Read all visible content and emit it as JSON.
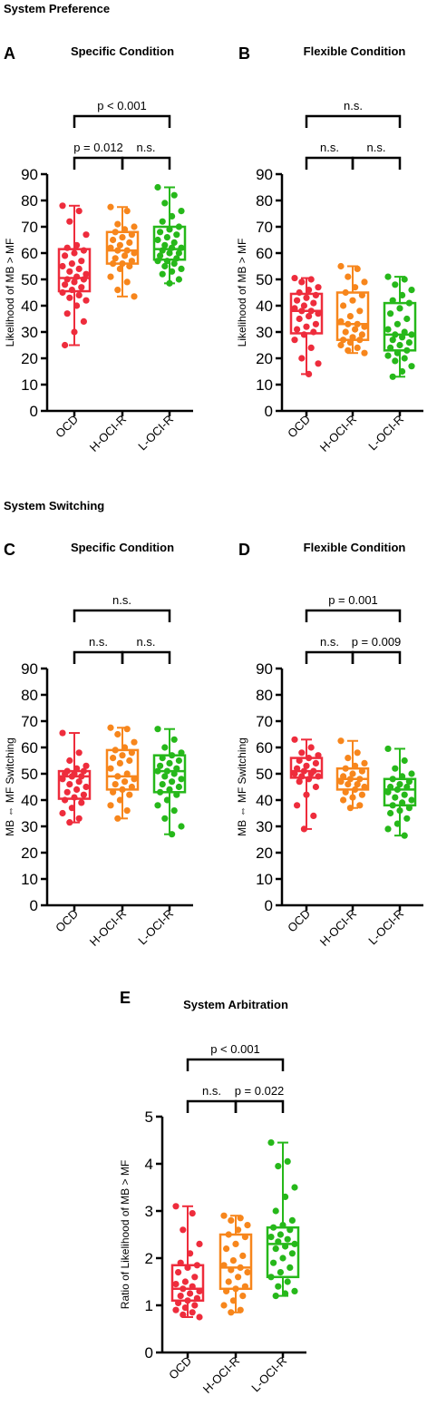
{
  "section_headers": [
    "System Preference",
    "System Switching"
  ],
  "colors": {
    "OCD": "#ee2c3c",
    "H-OCI-R": "#f7861c",
    "L-OCI-R": "#26b81a"
  },
  "chart_data": [
    {
      "panel": "A",
      "title": "Specific Condition",
      "type": "box",
      "ylabel": "Likelihood of MB > MF",
      "ylim": [
        0,
        90
      ],
      "yticks": [
        "0",
        "10",
        "20",
        "30",
        "40",
        "50",
        "60",
        "70",
        "80",
        "90"
      ],
      "categories": [
        "OCD",
        "H-OCI-R",
        "L-OCI-R"
      ],
      "comparisons": [
        {
          "groups": [
            "OCD",
            "H-OCI-R"
          ],
          "label": "p = 0.012"
        },
        {
          "groups": [
            "H-OCI-R",
            "L-OCI-R"
          ],
          "label": "n.s."
        },
        {
          "groups": [
            "OCD",
            "L-OCI-R"
          ],
          "label": "p < 0.001"
        }
      ],
      "series": [
        {
          "group": "OCD",
          "min": 25,
          "q1": 45.5,
          "median": 50.5,
          "q3": 61.5,
          "max": 78,
          "points": [
            78,
            76,
            72,
            67,
            63,
            62,
            61,
            60,
            59,
            57,
            56,
            55,
            54,
            53,
            52,
            51,
            50,
            50,
            49,
            48,
            47,
            46,
            45,
            44,
            43,
            42,
            40,
            37,
            34,
            30,
            25
          ]
        },
        {
          "group": "H-OCI-R",
          "min": 43.5,
          "q1": 56,
          "median": 61,
          "q3": 68,
          "max": 77.5,
          "points": [
            77.5,
            76,
            71,
            70,
            69,
            68,
            67,
            66,
            65,
            64,
            63,
            62,
            61,
            61,
            60,
            59,
            58,
            57,
            56,
            56,
            55,
            54,
            51,
            49,
            46,
            43.5
          ]
        },
        {
          "group": "L-OCI-R",
          "min": 48.5,
          "q1": 57.5,
          "median": 61.5,
          "q3": 70,
          "max": 85,
          "points": [
            85,
            82,
            79,
            76,
            74,
            72,
            70,
            69,
            68,
            67,
            66,
            65,
            64,
            63,
            62,
            62,
            61,
            60,
            60,
            59,
            58,
            57,
            57,
            56,
            55,
            54,
            53,
            52,
            50,
            48.5
          ]
        }
      ]
    },
    {
      "panel": "B",
      "title": "Flexible Condition",
      "type": "box",
      "ylabel": "Likelihood of MB > MF",
      "ylim": [
        0,
        90
      ],
      "yticks": [
        "0",
        "10",
        "20",
        "30",
        "40",
        "50",
        "60",
        "70",
        "80",
        "90"
      ],
      "categories": [
        "OCD",
        "H-OCI-R",
        "L-OCI-R"
      ],
      "comparisons": [
        {
          "groups": [
            "OCD",
            "H-OCI-R"
          ],
          "label": "n.s."
        },
        {
          "groups": [
            "H-OCI-R",
            "L-OCI-R"
          ],
          "label": "n.s."
        },
        {
          "groups": [
            "OCD",
            "L-OCI-R"
          ],
          "label": "n.s."
        }
      ],
      "series": [
        {
          "group": "OCD",
          "min": 14,
          "q1": 29.5,
          "median": 38,
          "q3": 44.5,
          "max": 50.5,
          "points": [
            50.5,
            50,
            49,
            47,
            46,
            45,
            44,
            43,
            42,
            41,
            40,
            39,
            38,
            38,
            37,
            36,
            35,
            33,
            32,
            31,
            30,
            29,
            27,
            24,
            20,
            18,
            14
          ]
        },
        {
          "group": "H-OCI-R",
          "min": 22,
          "q1": 27,
          "median": 33,
          "q3": 45,
          "max": 55,
          "points": [
            55,
            54,
            51,
            49,
            47,
            45,
            44,
            42,
            40,
            38,
            36,
            34,
            33,
            33,
            32,
            31,
            30,
            29,
            28,
            27,
            27,
            26,
            25,
            24,
            23,
            22
          ]
        },
        {
          "group": "L-OCI-R",
          "min": 13,
          "q1": 23,
          "median": 29,
          "q3": 41,
          "max": 51,
          "points": [
            51,
            50,
            48,
            46,
            44,
            42,
            41,
            39,
            37,
            35,
            33,
            31,
            30,
            29,
            29,
            28,
            27,
            26,
            25,
            24,
            23,
            22,
            21,
            20,
            19,
            17,
            15,
            13
          ]
        }
      ]
    },
    {
      "panel": "C",
      "title": "Specific Condition",
      "type": "box",
      "ylabel": "MB ⇔ MF Switching",
      "ylim": [
        0,
        90
      ],
      "yticks": [
        "0",
        "10",
        "20",
        "30",
        "40",
        "50",
        "60",
        "70",
        "80",
        "90"
      ],
      "categories": [
        "OCD",
        "H-OCI-R",
        "L-OCI-R"
      ],
      "comparisons": [
        {
          "groups": [
            "OCD",
            "H-OCI-R"
          ],
          "label": "n.s."
        },
        {
          "groups": [
            "H-OCI-R",
            "L-OCI-R"
          ],
          "label": "n.s."
        },
        {
          "groups": [
            "OCD",
            "L-OCI-R"
          ],
          "label": "n.s."
        }
      ],
      "series": [
        {
          "group": "OCD",
          "min": 31.5,
          "q1": 40.5,
          "median": 49,
          "q3": 51,
          "max": 65.5,
          "points": [
            65.5,
            58,
            55,
            53,
            52,
            51,
            51,
            50,
            50,
            49,
            49,
            48,
            47,
            46,
            45,
            44,
            43,
            42,
            41,
            40,
            39,
            37,
            35,
            33,
            31.5
          ]
        },
        {
          "group": "H-OCI-R",
          "min": 33,
          "q1": 44,
          "median": 49,
          "q3": 59,
          "max": 67.5,
          "points": [
            67.5,
            67,
            65,
            62,
            60,
            59,
            58,
            57,
            56,
            55,
            54,
            52,
            50,
            49,
            48,
            47,
            46,
            45,
            44,
            43,
            42,
            40,
            38,
            36,
            33
          ]
        },
        {
          "group": "L-OCI-R",
          "min": 27,
          "q1": 43,
          "median": 51,
          "q3": 57,
          "max": 67,
          "points": [
            67,
            63,
            60,
            58,
            57,
            56,
            55,
            54,
            53,
            52,
            51,
            51,
            50,
            49,
            48,
            47,
            46,
            45,
            44,
            43,
            42,
            40,
            38,
            36,
            33,
            30,
            27
          ]
        }
      ]
    },
    {
      "panel": "D",
      "title": "Flexible Condition",
      "type": "box",
      "ylabel": "MB ⇔ MF Switching",
      "ylim": [
        0,
        90
      ],
      "yticks": [
        "0",
        "10",
        "20",
        "30",
        "40",
        "50",
        "60",
        "70",
        "80",
        "90"
      ],
      "categories": [
        "OCD",
        "H-OCI-R",
        "L-OCI-R"
      ],
      "comparisons": [
        {
          "groups": [
            "OCD",
            "H-OCI-R"
          ],
          "label": "n.s."
        },
        {
          "groups": [
            "H-OCI-R",
            "L-OCI-R"
          ],
          "label": "p = 0.009"
        },
        {
          "groups": [
            "OCD",
            "L-OCI-R"
          ],
          "label": "p = 0.001"
        }
      ],
      "series": [
        {
          "group": "OCD",
          "min": 29,
          "q1": 48.5,
          "median": 51,
          "q3": 56,
          "max": 63,
          "points": [
            63,
            60,
            58,
            57,
            56,
            55,
            54,
            53,
            52,
            51,
            51,
            50,
            50,
            49,
            49,
            48,
            47,
            45,
            42,
            38,
            34,
            29
          ]
        },
        {
          "group": "H-OCI-R",
          "min": 37,
          "q1": 44,
          "median": 48,
          "q3": 52,
          "max": 62.5,
          "points": [
            62.5,
            58,
            56,
            54,
            53,
            52,
            51,
            50,
            49,
            48,
            48,
            47,
            46,
            46,
            45,
            44,
            43,
            42,
            41,
            40,
            38,
            37
          ]
        },
        {
          "group": "L-OCI-R",
          "min": 26.5,
          "q1": 38,
          "median": 44,
          "q3": 48,
          "max": 59.5,
          "points": [
            59.5,
            55,
            52,
            50,
            49,
            48,
            47,
            46,
            45,
            45,
            44,
            43,
            42,
            41,
            40,
            39,
            38,
            37,
            36,
            35,
            33,
            31,
            29,
            26.5
          ]
        }
      ]
    },
    {
      "panel": "E",
      "title": "System Arbitration",
      "type": "box",
      "ylabel": "Ratio of Likelihood of MB > MF",
      "ylim": [
        0,
        5
      ],
      "yticks": [
        "0",
        "1",
        "2",
        "3",
        "4",
        "5"
      ],
      "categories": [
        "OCD",
        "H-OCI-R",
        "L-OCI-R"
      ],
      "comparisons": [
        {
          "groups": [
            "OCD",
            "H-OCI-R"
          ],
          "label": "n.s."
        },
        {
          "groups": [
            "H-OCI-R",
            "L-OCI-R"
          ],
          "label": "p = 0.022"
        },
        {
          "groups": [
            "OCD",
            "L-OCI-R"
          ],
          "label": "p < 0.001"
        }
      ],
      "series": [
        {
          "group": "OCD",
          "min": 0.75,
          "q1": 1.1,
          "median": 1.35,
          "q3": 1.85,
          "max": 3.1,
          "points": [
            3.1,
            2.95,
            2.6,
            2.3,
            2.1,
            1.9,
            1.85,
            1.8,
            1.7,
            1.6,
            1.5,
            1.45,
            1.4,
            1.35,
            1.3,
            1.25,
            1.2,
            1.15,
            1.1,
            1.05,
            1.0,
            0.95,
            0.9,
            0.85,
            0.8,
            0.75
          ]
        },
        {
          "group": "H-OCI-R",
          "min": 0.85,
          "q1": 1.35,
          "median": 1.8,
          "q3": 2.5,
          "max": 2.9,
          "points": [
            2.9,
            2.85,
            2.8,
            2.7,
            2.6,
            2.5,
            2.45,
            2.3,
            2.2,
            2.05,
            1.95,
            1.85,
            1.8,
            1.75,
            1.7,
            1.6,
            1.5,
            1.4,
            1.35,
            1.3,
            1.2,
            1.1,
            1.0,
            0.9,
            0.85
          ]
        },
        {
          "group": "L-OCI-R",
          "min": 1.2,
          "q1": 1.6,
          "median": 2.3,
          "q3": 2.65,
          "max": 4.45,
          "points": [
            4.45,
            4.05,
            3.95,
            3.5,
            3.3,
            3.0,
            2.8,
            2.7,
            2.65,
            2.6,
            2.5,
            2.45,
            2.4,
            2.35,
            2.3,
            2.25,
            2.2,
            2.1,
            2.0,
            1.9,
            1.8,
            1.7,
            1.6,
            1.5,
            1.4,
            1.3,
            1.25,
            1.2
          ]
        }
      ]
    }
  ]
}
